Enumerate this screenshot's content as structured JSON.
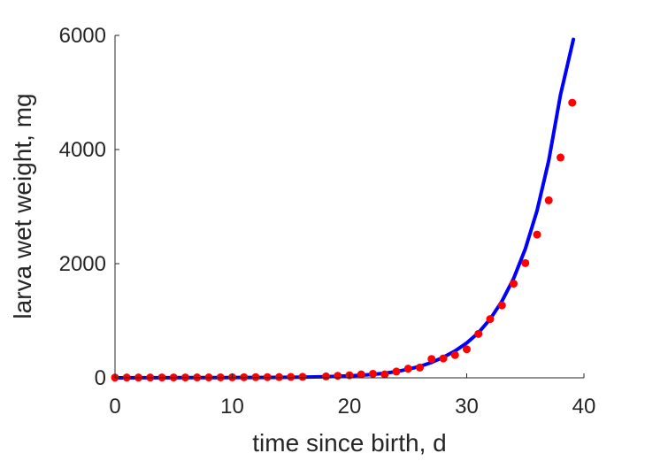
{
  "chart_data": {
    "type": "scatter",
    "xlabel": "time since birth, d",
    "ylabel": "larva wet weight, mg",
    "xlim": [
      0,
      40
    ],
    "ylim": [
      0,
      6000
    ],
    "xticks": [
      "0",
      "10",
      "20",
      "30",
      "40"
    ],
    "yticks": [
      "0",
      "2000",
      "4000",
      "6000"
    ],
    "grid": false,
    "box": false,
    "series": [
      {
        "kind": "points",
        "color": "#ff0000",
        "x": [
          0,
          1,
          2,
          3,
          4,
          5,
          6,
          7,
          8,
          9,
          10,
          11,
          12,
          13,
          14,
          15,
          16,
          18,
          19,
          20,
          21,
          22,
          23,
          24,
          25,
          26,
          27,
          28,
          29,
          30,
          31,
          32,
          33,
          34,
          35,
          36,
          37,
          38,
          39
        ],
        "y": [
          4,
          5,
          5,
          5,
          6,
          6,
          6,
          7,
          7,
          8,
          9,
          10,
          11,
          12,
          13,
          15,
          17,
          25,
          35,
          45,
          60,
          70,
          60,
          110,
          160,
          180,
          330,
          340,
          400,
          500,
          770,
          1030,
          1270,
          1650,
          2010,
          2510,
          3110,
          3860,
          4820
        ]
      },
      {
        "kind": "line",
        "color": "#0000ff",
        "x": [
          0,
          2,
          4,
          6,
          8,
          10,
          12,
          14,
          16,
          18,
          20,
          21,
          22,
          23,
          24,
          25,
          26,
          27,
          28,
          29,
          30,
          31,
          32,
          33,
          34,
          35,
          36,
          37,
          38,
          38.5,
          39.1
        ],
        "y": [
          0,
          1,
          2,
          3,
          4,
          5,
          6,
          8,
          12,
          20,
          35,
          45,
          60,
          80,
          110,
          150,
          200,
          270,
          360,
          470,
          610,
          790,
          1030,
          1340,
          1740,
          2260,
          2930,
          3810,
          4960,
          5400,
          5930
        ]
      }
    ]
  }
}
